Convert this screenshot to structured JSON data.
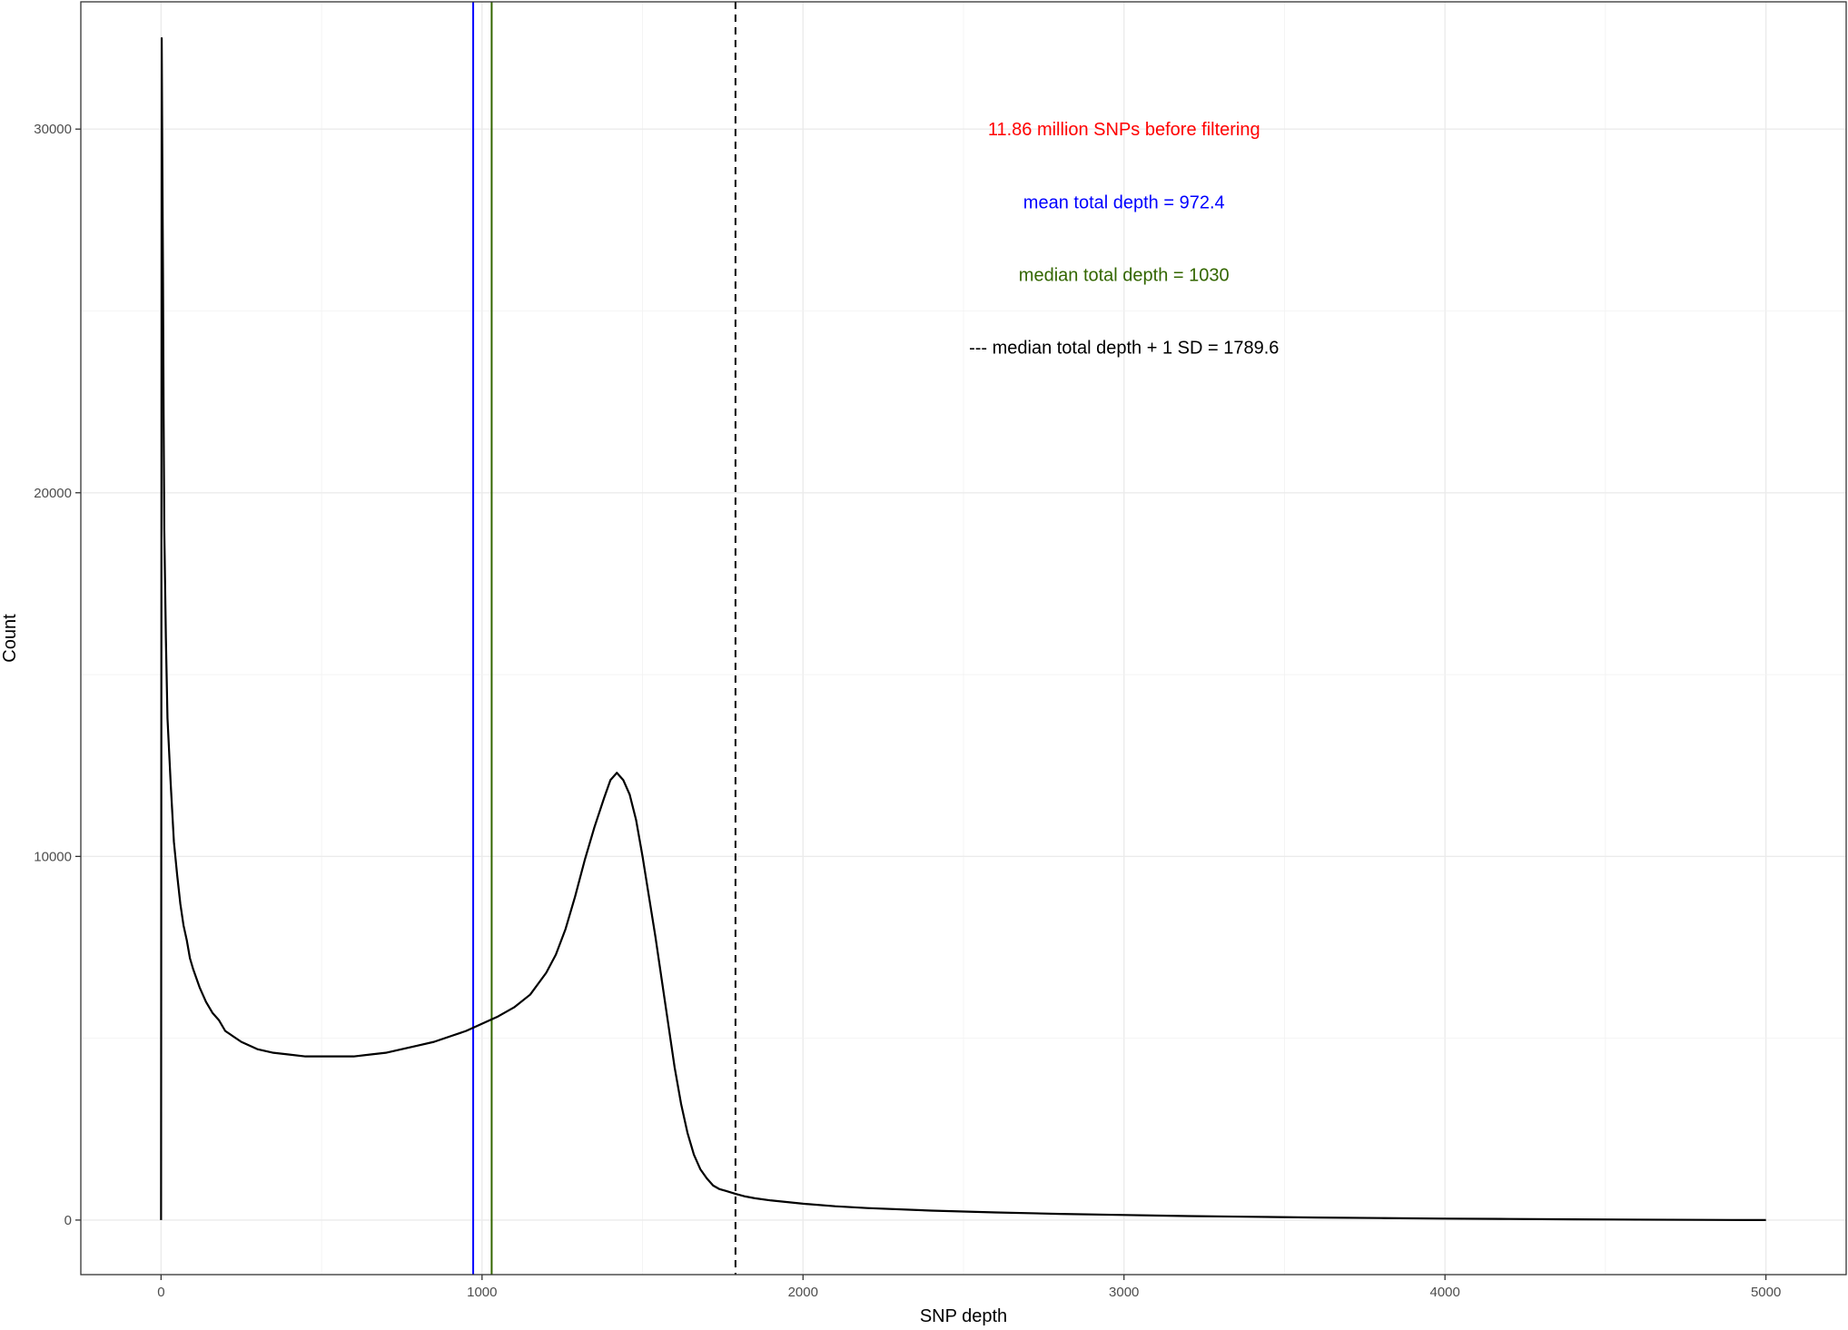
{
  "chart_data": {
    "type": "line",
    "title": "",
    "xlabel": "SNP depth",
    "ylabel": "Count",
    "xlim": [
      -250,
      5250
    ],
    "ylim": [
      -1500,
      33500
    ],
    "x_ticks": [
      0,
      1000,
      2000,
      3000,
      4000,
      5000
    ],
    "x_tick_labels": [
      "0",
      "1000",
      "2000",
      "3000",
      "4000",
      "5000"
    ],
    "y_ticks": [
      0,
      10000,
      20000,
      30000
    ],
    "y_tick_labels": [
      "0",
      "10000",
      "20000",
      "30000"
    ],
    "grid": true,
    "series": [
      {
        "color": "#000000",
        "x": [
          0,
          2,
          4,
          6,
          8,
          10,
          15,
          20,
          30,
          40,
          50,
          60,
          70,
          80,
          90,
          100,
          120,
          140,
          160,
          180,
          200,
          250,
          300,
          350,
          400,
          450,
          500,
          550,
          600,
          650,
          700,
          750,
          800,
          850,
          900,
          950,
          1000,
          1050,
          1100,
          1150,
          1200,
          1230,
          1260,
          1290,
          1320,
          1350,
          1380,
          1400,
          1420,
          1440,
          1460,
          1480,
          1500,
          1520,
          1540,
          1560,
          1580,
          1600,
          1620,
          1640,
          1660,
          1680,
          1700,
          1720,
          1740,
          1760,
          1790,
          1820,
          1850,
          1900,
          2000,
          2100,
          2200,
          2400,
          2600,
          2800,
          3000,
          3200,
          3400,
          3600,
          3800,
          4000,
          4200,
          4400,
          4600,
          4800,
          5000
        ],
        "y": [
          0,
          32500,
          29000,
          26000,
          22000,
          19000,
          16000,
          13800,
          12000,
          10400,
          9500,
          8700,
          8100,
          7700,
          7200,
          6900,
          6400,
          6000,
          5700,
          5500,
          5200,
          4900,
          4700,
          4600,
          4550,
          4500,
          4500,
          4500,
          4500,
          4550,
          4600,
          4700,
          4800,
          4900,
          5050,
          5200,
          5400,
          5600,
          5850,
          6200,
          6800,
          7300,
          8000,
          8900,
          9900,
          10800,
          11600,
          12100,
          12300,
          12100,
          11700,
          11000,
          10000,
          8900,
          7800,
          6600,
          5400,
          4200,
          3200,
          2400,
          1800,
          1400,
          1150,
          950,
          850,
          800,
          720,
          650,
          600,
          540,
          450,
          380,
          330,
          260,
          210,
          170,
          140,
          110,
          90,
          70,
          55,
          40,
          30,
          20,
          12,
          5,
          0
        ]
      }
    ],
    "vlines": [
      {
        "x": 972.4,
        "color": "#0000ff",
        "style": "solid"
      },
      {
        "x": 1030,
        "color": "#336600",
        "style": "solid"
      },
      {
        "x": 1789.6,
        "color": "#000000",
        "style": "dashed"
      }
    ],
    "annotations": [
      {
        "text": "11.86 million SNPs before filtering",
        "x": 3000,
        "y": 30000,
        "color": "#ff0000"
      },
      {
        "text": "mean total depth = 972.4",
        "x": 3000,
        "y": 28000,
        "color": "#0000ff"
      },
      {
        "text": "median total depth = 1030",
        "x": 3000,
        "y": 26000,
        "color": "#336600"
      },
      {
        "text": "--- median total depth + 1 SD = 1789.6",
        "x": 3000,
        "y": 24000,
        "color": "#000000"
      }
    ]
  }
}
